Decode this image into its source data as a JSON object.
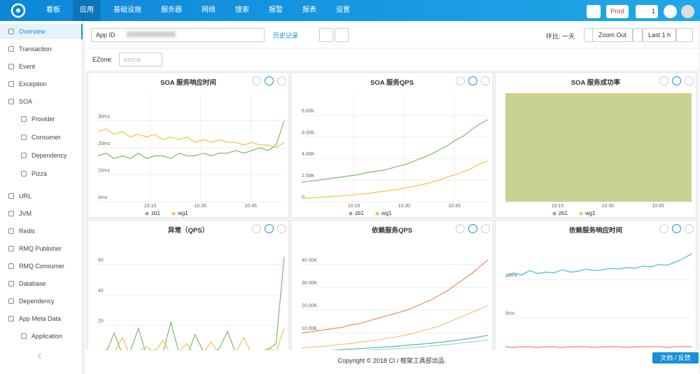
{
  "nav": {
    "items": [
      "看板",
      "应用",
      "基础设施",
      "服务器",
      "网络",
      "搜索",
      "报警",
      "报表",
      "设置"
    ],
    "active": 1,
    "env": "Prod",
    "alerts": "1"
  },
  "sidebar": {
    "items": [
      {
        "label": "Overview",
        "level": 0
      },
      {
        "label": "Transaction",
        "level": 0
      },
      {
        "label": "Event",
        "level": 0
      },
      {
        "label": "Exception",
        "level": 0
      },
      {
        "label": "SOA",
        "level": 0
      },
      {
        "label": "Provider",
        "level": 1
      },
      {
        "label": "Consumer",
        "level": 1
      },
      {
        "label": "Dependency",
        "level": 1
      },
      {
        "label": "Pizza",
        "level": 1
      },
      {
        "label": "URL",
        "level": 0
      },
      {
        "label": "JVM",
        "level": 0
      },
      {
        "label": "Redis",
        "level": 0
      },
      {
        "label": "RMQ Publisher",
        "level": 0
      },
      {
        "label": "RMQ Consumer",
        "level": 0
      },
      {
        "label": "Database",
        "level": 0
      },
      {
        "label": "Dependency",
        "level": 0
      },
      {
        "label": "App Meta Data",
        "level": 0
      },
      {
        "label": "Application",
        "level": 1
      }
    ],
    "active": 0
  },
  "toolbar": {
    "app_id_label": "App ID",
    "history": "历史记录",
    "compare": "环比: 一天",
    "zoom_out": "Zoom Out",
    "range": "Last 1 h",
    "ezone_label": "EZone:",
    "ezone_placeholder": "ezone"
  },
  "panels": [
    {
      "title": "SOA 服务响应时间",
      "ylim": [
        0,
        40
      ],
      "yticks": [
        {
          "value": 0,
          "label": "0ms"
        },
        {
          "value": 10,
          "label": "10ms"
        },
        {
          "value": 20,
          "label": "20ms"
        },
        {
          "value": 30,
          "label": "30ms"
        }
      ],
      "xticks": [
        "10:15",
        "10:30",
        "10:45"
      ],
      "series": [
        {
          "name": "zb1",
          "color": "#7cb86e",
          "values": [
            17,
            18,
            16,
            17,
            16,
            18,
            16,
            17,
            17,
            16,
            18,
            17,
            17,
            18,
            17,
            18,
            18,
            19,
            18,
            19,
            20,
            19,
            21,
            30
          ]
        },
        {
          "name": "wg1",
          "color": "#f2c14e",
          "values": [
            26,
            27,
            25,
            26,
            24,
            25,
            24,
            25,
            23,
            24,
            23,
            24,
            22,
            23,
            22,
            23,
            22,
            22,
            21,
            22,
            21,
            21,
            20,
            22
          ]
        }
      ]
    },
    {
      "title": "SOA 服务QPS",
      "ylim": [
        0,
        10000
      ],
      "yticks": [
        {
          "value": 0,
          "label": "0"
        },
        {
          "value": 2000,
          "label": "2.00K"
        },
        {
          "value": 4000,
          "label": "4.00K"
        },
        {
          "value": 6000,
          "label": "6.00K"
        },
        {
          "value": 8000,
          "label": "8.00K"
        }
      ],
      "xticks": [
        "10:15",
        "10:30",
        "10:45"
      ],
      "series": [
        {
          "name": "zb1",
          "color": "#7cb86e",
          "values": [
            1800,
            1900,
            2000,
            2100,
            2200,
            2300,
            2400,
            2500,
            2700,
            2800,
            2900,
            3100,
            3300,
            3500,
            3800,
            4100,
            4400,
            4800,
            5200,
            5700,
            6100,
            6700,
            7200,
            7600
          ]
        },
        {
          "name": "wg1",
          "color": "#f2c14e",
          "values": [
            300,
            350,
            400,
            450,
            500,
            550,
            600,
            700,
            750,
            850,
            950,
            1050,
            1150,
            1300,
            1450,
            1600,
            1800,
            2000,
            2300,
            2500,
            2800,
            3100,
            3500,
            3800
          ]
        }
      ]
    },
    {
      "title": "SOA 服务成功率",
      "ylim": [
        0,
        100
      ],
      "area_color": "#c9d293",
      "yticks": [
        {
          "value": 0,
          "label": "0.00%"
        },
        {
          "value": 20,
          "label": "20.00%"
        },
        {
          "value": 40,
          "label": "40.00%"
        },
        {
          "value": 60,
          "label": "60.00%"
        },
        {
          "value": 80,
          "label": "80.00%"
        }
      ],
      "xticks": [
        "10:15",
        "10:30",
        "10:45"
      ],
      "series": [
        {
          "name": "zb1",
          "color": "#7cb86e",
          "values": [
            100,
            100,
            100,
            100,
            100,
            100,
            100,
            100,
            100,
            100,
            100,
            100,
            100,
            100,
            100,
            100,
            100,
            100,
            100,
            100,
            100,
            100,
            100,
            100
          ]
        },
        {
          "name": "wg1",
          "color": "#f2c14e",
          "values": [
            100,
            100,
            100,
            100,
            100,
            100,
            100,
            100,
            100,
            100,
            100,
            100,
            100,
            100,
            100,
            100,
            100,
            100,
            100,
            100,
            100,
            100,
            100,
            100
          ]
        }
      ]
    },
    {
      "title": "异常（QPS）",
      "ylim": [
        0,
        75
      ],
      "yticks": [
        20,
        40,
        60
      ],
      "series": [
        {
          "color": "#7cb86e",
          "values": [
            0,
            2,
            15,
            1,
            3,
            18,
            0,
            4,
            1,
            22,
            2,
            0,
            14,
            3,
            1,
            5,
            16,
            2,
            0,
            3,
            1,
            4,
            8,
            65
          ]
        },
        {
          "color": "#f2c14e",
          "values": [
            1,
            4,
            2,
            12,
            0,
            3,
            6,
            2,
            10,
            1,
            3,
            8,
            0,
            2,
            9,
            1,
            3,
            2,
            12,
            1,
            2,
            5,
            3,
            18
          ]
        }
      ]
    },
    {
      "title": "依赖服务QPS",
      "ylim": [
        0,
        50000
      ],
      "yticks": [
        {
          "value": 10000,
          "label": "10.00K"
        },
        {
          "value": 20000,
          "label": "20.00K"
        },
        {
          "value": 30000,
          "label": "30.00K"
        },
        {
          "value": 40000,
          "label": "40.00K"
        }
      ],
      "series": [
        {
          "color": "#ee8a5c",
          "values": [
            10000,
            10500,
            11000,
            11500,
            12000,
            12500,
            13500,
            14000,
            15000,
            16000,
            17000,
            18000,
            19000,
            20000,
            21500,
            23000,
            24500,
            26500,
            28500,
            31000,
            33500,
            36000,
            39000,
            42000
          ]
        },
        {
          "color": "#f5c27a",
          "values": [
            3500,
            3800,
            4000,
            4300,
            4600,
            5000,
            5400,
            5800,
            6300,
            6800,
            7300,
            7900,
            8500,
            9200,
            10000,
            11000,
            12000,
            13000,
            14500,
            16000,
            17500,
            19000,
            20500,
            22000
          ]
        },
        {
          "color": "#5cb6b0",
          "values": [
            1500,
            1800,
            2000,
            2200,
            2400,
            2700,
            2900,
            3100,
            3300,
            3600,
            3800,
            4000,
            4300,
            4600,
            4900,
            5200,
            5500,
            5900,
            6300,
            6700,
            7200,
            7700,
            8300,
            9000
          ]
        },
        {
          "color": "#9bd7e0",
          "values": [
            800,
            1000,
            1200,
            1400,
            1600,
            1800,
            2000,
            2200,
            2400,
            2600,
            2800,
            3000,
            3200,
            3400,
            3700,
            4000,
            4300,
            4600,
            4900,
            5300,
            5700,
            6100,
            6500,
            7000
          ]
        }
      ]
    },
    {
      "title": "依赖服务响应时间",
      "ylim": [
        0,
        15
      ],
      "yticks": [
        {
          "value": 5,
          "label": "5ms"
        },
        {
          "value": 10,
          "label": "10ms"
        }
      ],
      "series": [
        {
          "color": "#3fbcd6",
          "values": [
            10.4,
            10.9,
            10.6,
            11.2,
            10.8,
            11.0,
            10.9,
            11.3,
            11.0,
            11.1,
            11.4,
            11.2,
            11.3,
            11.5,
            11.4,
            11.6,
            11.5,
            11.8,
            11.7,
            12.0,
            11.9,
            12.3,
            12.8,
            13.4
          ]
        },
        {
          "color": "#ee8a5c",
          "values": [
            1.2,
            1.1,
            1.2,
            1.2,
            1.1,
            1.2,
            1.2,
            1.1,
            1.2,
            1.2,
            1.2,
            1.1,
            1.2,
            1.2,
            1.2,
            1.1,
            1.2,
            1.2,
            1.2,
            1.2,
            1.1,
            1.2,
            1.2,
            1.2
          ]
        }
      ]
    }
  ],
  "footer": {
    "copyright": "Copyright © 2018 CI / 框架工具部出品.",
    "feedback": "文档 / 反馈"
  }
}
